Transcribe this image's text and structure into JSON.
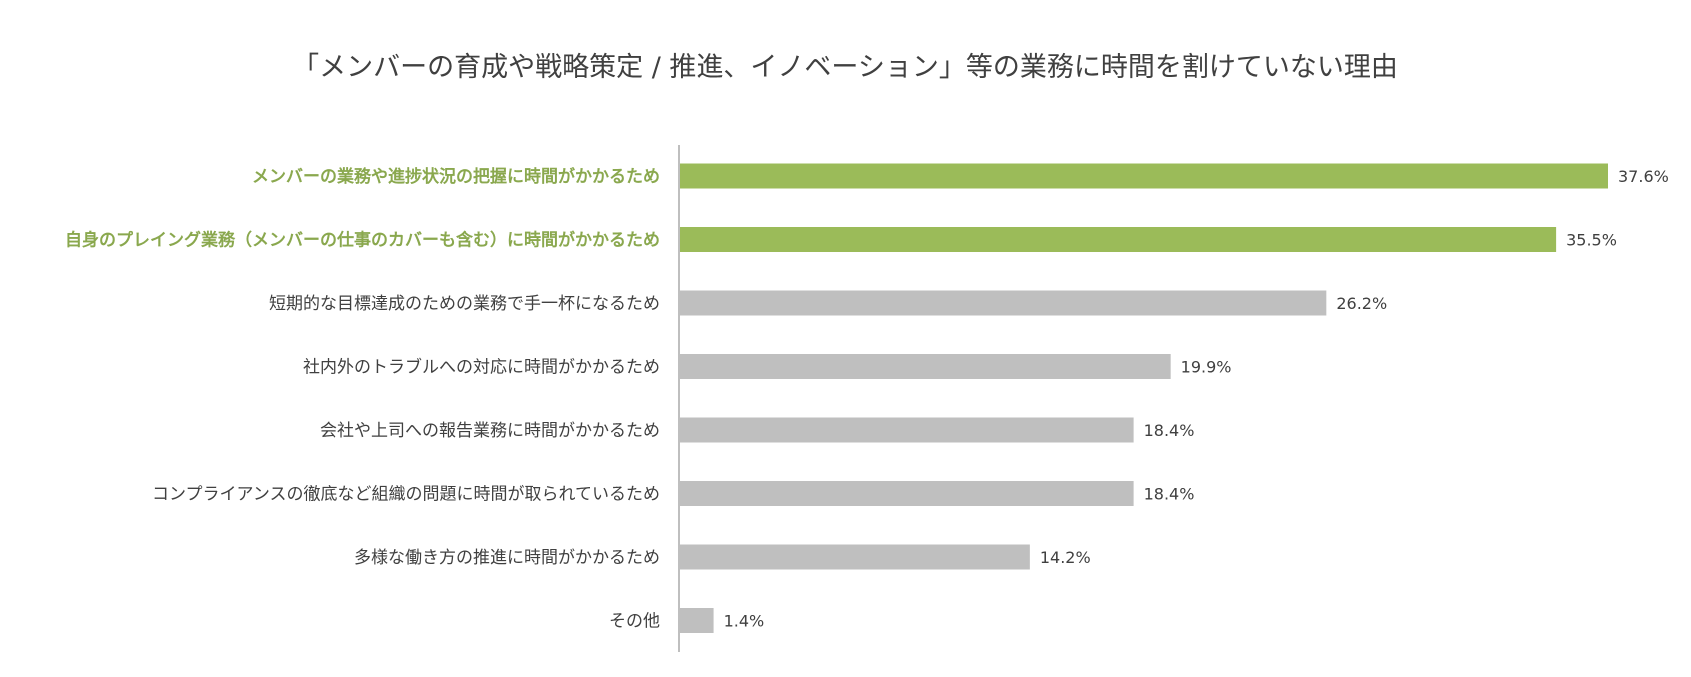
{
  "chart_data": {
    "type": "bar",
    "orientation": "horizontal",
    "title": "「メンバーの育成や戦略策定 / 推進、イノベーション」等の業務に時間を割けていない理由",
    "categories": [
      "メンバーの業務や進捗状況の把握に時間がかかるため",
      "自身のプレイング業務（メンバーの仕事のカバーも含む）に時間がかかるため",
      "短期的な目標達成のための業務で手一杯になるため",
      "社内外のトラブルへの対応に時間がかかるため",
      "会社や上司への報告業務に時間がかかるため",
      "コンプライアンスの徹底など組織の問題に時間が取られているため",
      "多様な働き方の推進に時間がかかるため",
      "その他"
    ],
    "values": [
      37.6,
      35.5,
      26.2,
      19.9,
      18.4,
      18.4,
      14.2,
      1.4
    ],
    "value_labels": [
      "37.6%",
      "35.5%",
      "26.2%",
      "19.9%",
      "18.4%",
      "18.4%",
      "14.2%",
      "1.4%"
    ],
    "highlighted": [
      true,
      true,
      false,
      false,
      false,
      false,
      false,
      false
    ],
    "unit": "%",
    "xlim": [
      0,
      40
    ],
    "grid": false,
    "legend": "none",
    "colors": {
      "highlight": "#9bbb59",
      "default": "#bfbfbf",
      "highlight_label": "#8aa84e",
      "text": "#404040",
      "axis": "#bfbfbf"
    }
  }
}
